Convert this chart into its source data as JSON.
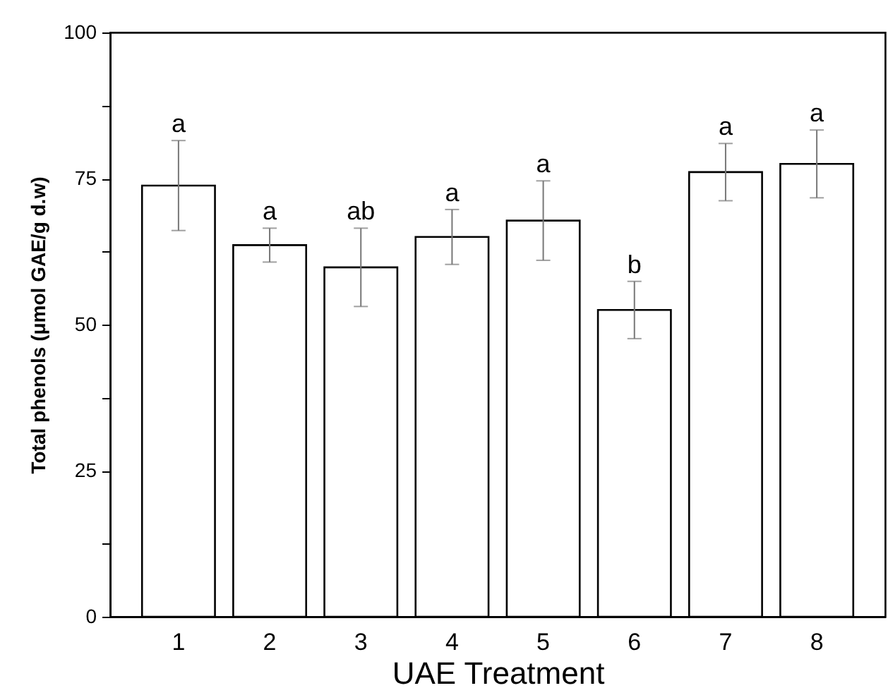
{
  "chart_data": {
    "type": "bar",
    "xlabel": "UAE Treatment",
    "ylabel": "Total phenols (μmol GAE/g d.w)",
    "categories": [
      "1",
      "2",
      "3",
      "4",
      "5",
      "6",
      "7",
      "8"
    ],
    "values": [
      73.8,
      63.6,
      59.8,
      65.0,
      67.8,
      52.5,
      76.1,
      77.5
    ],
    "errors": [
      7.7,
      2.9,
      6.7,
      4.7,
      6.8,
      4.9,
      4.9,
      5.8
    ],
    "color": "#ffffff",
    "ylim": [
      0,
      100
    ],
    "yticks": [
      0,
      {
        "value": 12.5,
        "label": null
      },
      25,
      {
        "value": 37.5,
        "label": null
      },
      50,
      {
        "value": 62.5,
        "label": null
      },
      75,
      {
        "value": 87.5,
        "label": null
      },
      100
    ],
    "grid": false,
    "annotations": [
      {
        "text": "a",
        "x": "1",
        "y": 81.5
      },
      {
        "text": "a",
        "x": "2",
        "y": 66.5
      },
      {
        "text": "ab",
        "x": "3",
        "y": 66.5
      },
      {
        "text": "a",
        "x": "4",
        "y": 69.7
      },
      {
        "text": "a",
        "x": "5",
        "y": 74.6
      },
      {
        "text": "b",
        "x": "6",
        "y": 57.4
      },
      {
        "text": "a",
        "x": "7",
        "y": 81.0
      },
      {
        "text": "a",
        "x": "8",
        "y": 83.3
      }
    ]
  }
}
